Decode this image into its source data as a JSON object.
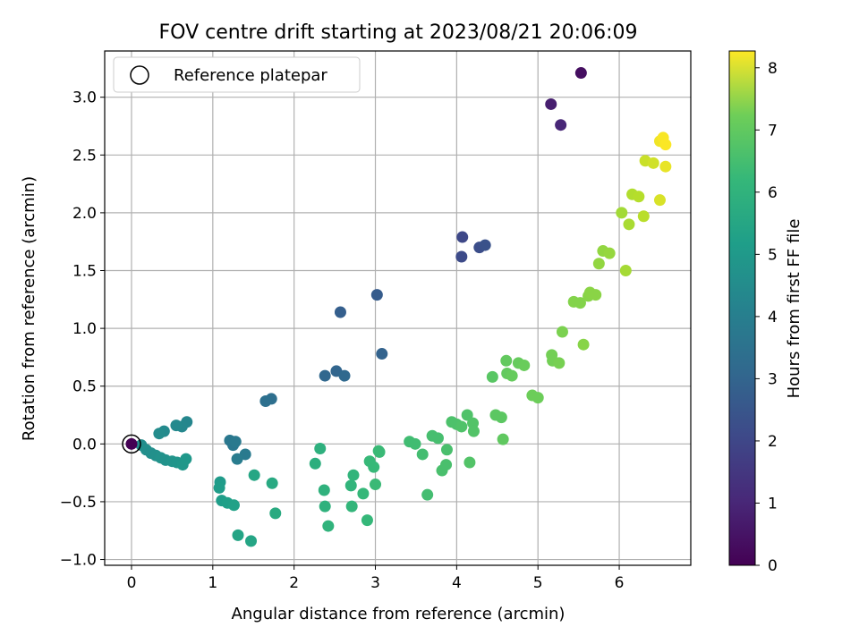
{
  "chart_data": {
    "type": "scatter",
    "title": "FOV centre drift starting at 2023/08/21 20:06:09",
    "xlabel": "Angular distance from reference (arcmin)",
    "ylabel": "Rotation from reference (arcmin)",
    "xlim": [
      -0.33,
      6.88
    ],
    "ylim": [
      -1.05,
      3.4
    ],
    "xticks": [
      0,
      1,
      2,
      3,
      4,
      5,
      6
    ],
    "yticks": [
      -1.0,
      -0.5,
      0.0,
      0.5,
      1.0,
      1.5,
      2.0,
      2.5,
      3.0
    ],
    "ytick_labels": [
      "−1.0",
      "−0.5",
      "0.0",
      "0.5",
      "1.0",
      "1.5",
      "2.0",
      "2.5",
      "3.0"
    ],
    "grid": true,
    "legend": {
      "position": "top-left",
      "entries": [
        "Reference platepar"
      ]
    },
    "reference_point": {
      "x": 0,
      "y": 0
    },
    "colorbar": {
      "label": "Hours from first FF file",
      "colormap": "viridis",
      "range": [
        0,
        8.27
      ],
      "ticks": [
        0,
        1,
        2,
        3,
        4,
        5,
        6,
        7,
        8
      ]
    },
    "points": [
      {
        "x": 5.53,
        "y": 3.21,
        "hours": 0.3
      },
      {
        "x": 5.16,
        "y": 2.94,
        "hours": 0.7
      },
      {
        "x": 5.28,
        "y": 2.76,
        "hours": 0.9
      },
      {
        "x": 4.07,
        "y": 1.79,
        "hours": 1.8
      },
      {
        "x": 4.06,
        "y": 1.62,
        "hours": 1.9
      },
      {
        "x": 4.28,
        "y": 1.7,
        "hours": 2.0
      },
      {
        "x": 4.35,
        "y": 1.72,
        "hours": 2.1
      },
      {
        "x": 3.02,
        "y": 1.29,
        "hours": 2.4
      },
      {
        "x": 2.57,
        "y": 1.14,
        "hours": 2.5
      },
      {
        "x": 3.08,
        "y": 0.78,
        "hours": 2.6
      },
      {
        "x": 2.52,
        "y": 0.63,
        "hours": 2.7
      },
      {
        "x": 2.38,
        "y": 0.59,
        "hours": 2.75
      },
      {
        "x": 2.62,
        "y": 0.59,
        "hours": 2.8
      },
      {
        "x": 1.72,
        "y": 0.39,
        "hours": 3.0
      },
      {
        "x": 1.65,
        "y": 0.37,
        "hours": 3.05
      },
      {
        "x": 1.21,
        "y": 0.03,
        "hours": 3.3
      },
      {
        "x": 1.25,
        "y": -0.01,
        "hours": 3.3
      },
      {
        "x": 1.28,
        "y": 0.02,
        "hours": 3.35
      },
      {
        "x": 1.4,
        "y": -0.09,
        "hours": 3.4
      },
      {
        "x": 1.3,
        "y": -0.13,
        "hours": 3.45
      },
      {
        "x": 0.68,
        "y": 0.19,
        "hours": 3.8
      },
      {
        "x": 0.62,
        "y": 0.15,
        "hours": 3.85
      },
      {
        "x": 0.55,
        "y": 0.16,
        "hours": 3.9
      },
      {
        "x": 0.4,
        "y": 0.11,
        "hours": 3.95
      },
      {
        "x": 0.34,
        "y": 0.09,
        "hours": 4.0
      },
      {
        "x": 0.12,
        "y": -0.01,
        "hours": 4.05
      },
      {
        "x": 0.18,
        "y": -0.05,
        "hours": 4.1
      },
      {
        "x": 0.24,
        "y": -0.08,
        "hours": 4.1
      },
      {
        "x": 0.3,
        "y": -0.1,
        "hours": 4.15
      },
      {
        "x": 0.36,
        "y": -0.12,
        "hours": 4.2
      },
      {
        "x": 0.42,
        "y": -0.14,
        "hours": 4.2
      },
      {
        "x": 0.5,
        "y": -0.15,
        "hours": 4.25
      },
      {
        "x": 0.56,
        "y": -0.16,
        "hours": 4.3
      },
      {
        "x": 0.63,
        "y": -0.18,
        "hours": 4.35
      },
      {
        "x": 0.67,
        "y": -0.13,
        "hours": 4.4
      },
      {
        "x": 1.09,
        "y": -0.33,
        "hours": 4.5
      },
      {
        "x": 1.08,
        "y": -0.38,
        "hours": 4.55
      },
      {
        "x": 1.11,
        "y": -0.49,
        "hours": 4.6
      },
      {
        "x": 1.18,
        "y": -0.51,
        "hours": 4.65
      },
      {
        "x": 1.26,
        "y": -0.53,
        "hours": 4.7
      },
      {
        "x": 1.31,
        "y": -0.79,
        "hours": 4.8
      },
      {
        "x": 1.47,
        "y": -0.84,
        "hours": 4.85
      },
      {
        "x": 1.51,
        "y": -0.27,
        "hours": 4.9
      },
      {
        "x": 1.73,
        "y": -0.34,
        "hours": 5.0
      },
      {
        "x": 1.77,
        "y": -0.6,
        "hours": 5.05
      },
      {
        "x": 2.26,
        "y": -0.17,
        "hours": 5.2
      },
      {
        "x": 2.32,
        "y": -0.04,
        "hours": 5.25
      },
      {
        "x": 2.37,
        "y": -0.4,
        "hours": 5.3
      },
      {
        "x": 2.38,
        "y": -0.54,
        "hours": 5.3
      },
      {
        "x": 2.42,
        "y": -0.71,
        "hours": 5.35
      },
      {
        "x": 2.7,
        "y": -0.36,
        "hours": 5.4
      },
      {
        "x": 2.73,
        "y": -0.27,
        "hours": 5.4
      },
      {
        "x": 2.71,
        "y": -0.54,
        "hours": 5.45
      },
      {
        "x": 2.85,
        "y": -0.43,
        "hours": 5.5
      },
      {
        "x": 2.9,
        "y": -0.66,
        "hours": 5.5
      },
      {
        "x": 2.93,
        "y": -0.15,
        "hours": 5.55
      },
      {
        "x": 2.98,
        "y": -0.2,
        "hours": 5.55
      },
      {
        "x": 3.0,
        "y": -0.35,
        "hours": 5.6
      },
      {
        "x": 3.04,
        "y": -0.06,
        "hours": 5.6
      },
      {
        "x": 3.05,
        "y": -0.07,
        "hours": 5.6
      },
      {
        "x": 3.42,
        "y": 0.02,
        "hours": 5.7
      },
      {
        "x": 3.49,
        "y": 0.0,
        "hours": 5.7
      },
      {
        "x": 3.58,
        "y": -0.09,
        "hours": 5.75
      },
      {
        "x": 3.64,
        "y": -0.44,
        "hours": 5.75
      },
      {
        "x": 3.7,
        "y": 0.07,
        "hours": 5.8
      },
      {
        "x": 3.77,
        "y": 0.05,
        "hours": 5.8
      },
      {
        "x": 3.82,
        "y": -0.23,
        "hours": 5.85
      },
      {
        "x": 3.87,
        "y": -0.18,
        "hours": 5.85
      },
      {
        "x": 3.88,
        "y": -0.05,
        "hours": 5.85
      },
      {
        "x": 3.94,
        "y": 0.19,
        "hours": 5.9
      },
      {
        "x": 4.0,
        "y": 0.17,
        "hours": 5.9
      },
      {
        "x": 4.06,
        "y": 0.15,
        "hours": 5.95
      },
      {
        "x": 4.13,
        "y": 0.25,
        "hours": 5.95
      },
      {
        "x": 4.16,
        "y": -0.16,
        "hours": 6.0
      },
      {
        "x": 4.2,
        "y": 0.18,
        "hours": 6.0
      },
      {
        "x": 4.21,
        "y": 0.11,
        "hours": 6.0
      },
      {
        "x": 4.44,
        "y": 0.58,
        "hours": 6.1
      },
      {
        "x": 4.48,
        "y": 0.25,
        "hours": 6.15
      },
      {
        "x": 4.55,
        "y": 0.23,
        "hours": 6.15
      },
      {
        "x": 4.57,
        "y": 0.04,
        "hours": 6.2
      },
      {
        "x": 4.61,
        "y": 0.72,
        "hours": 6.25
      },
      {
        "x": 4.62,
        "y": 0.61,
        "hours": 6.25
      },
      {
        "x": 4.68,
        "y": 0.59,
        "hours": 6.3
      },
      {
        "x": 4.76,
        "y": 0.7,
        "hours": 6.3
      },
      {
        "x": 4.83,
        "y": 0.68,
        "hours": 6.35
      },
      {
        "x": 4.93,
        "y": 0.42,
        "hours": 6.4
      },
      {
        "x": 5.0,
        "y": 0.4,
        "hours": 6.4
      },
      {
        "x": 5.17,
        "y": 0.77,
        "hours": 6.5
      },
      {
        "x": 5.18,
        "y": 0.72,
        "hours": 6.5
      },
      {
        "x": 5.26,
        "y": 0.7,
        "hours": 6.55
      },
      {
        "x": 5.3,
        "y": 0.97,
        "hours": 6.6
      },
      {
        "x": 5.44,
        "y": 1.23,
        "hours": 6.7
      },
      {
        "x": 5.52,
        "y": 1.22,
        "hours": 6.7
      },
      {
        "x": 5.56,
        "y": 0.86,
        "hours": 6.75
      },
      {
        "x": 5.62,
        "y": 1.28,
        "hours": 6.75
      },
      {
        "x": 5.64,
        "y": 1.31,
        "hours": 6.8
      },
      {
        "x": 5.71,
        "y": 1.29,
        "hours": 6.8
      },
      {
        "x": 5.75,
        "y": 1.56,
        "hours": 6.9
      },
      {
        "x": 5.8,
        "y": 1.67,
        "hours": 6.9
      },
      {
        "x": 5.88,
        "y": 1.65,
        "hours": 6.95
      },
      {
        "x": 6.03,
        "y": 2.0,
        "hours": 7.1
      },
      {
        "x": 6.08,
        "y": 1.5,
        "hours": 7.15
      },
      {
        "x": 6.12,
        "y": 1.9,
        "hours": 7.2
      },
      {
        "x": 6.16,
        "y": 2.16,
        "hours": 7.3
      },
      {
        "x": 6.24,
        "y": 2.14,
        "hours": 7.35
      },
      {
        "x": 6.3,
        "y": 1.97,
        "hours": 7.4
      },
      {
        "x": 6.32,
        "y": 2.45,
        "hours": 7.6
      },
      {
        "x": 6.42,
        "y": 2.43,
        "hours": 7.7
      },
      {
        "x": 6.5,
        "y": 2.11,
        "hours": 7.8
      },
      {
        "x": 6.5,
        "y": 2.62,
        "hours": 8.1
      },
      {
        "x": 6.54,
        "y": 2.65,
        "hours": 8.2
      },
      {
        "x": 6.57,
        "y": 2.59,
        "hours": 8.25
      },
      {
        "x": 6.57,
        "y": 2.4,
        "hours": 8.0
      }
    ]
  }
}
